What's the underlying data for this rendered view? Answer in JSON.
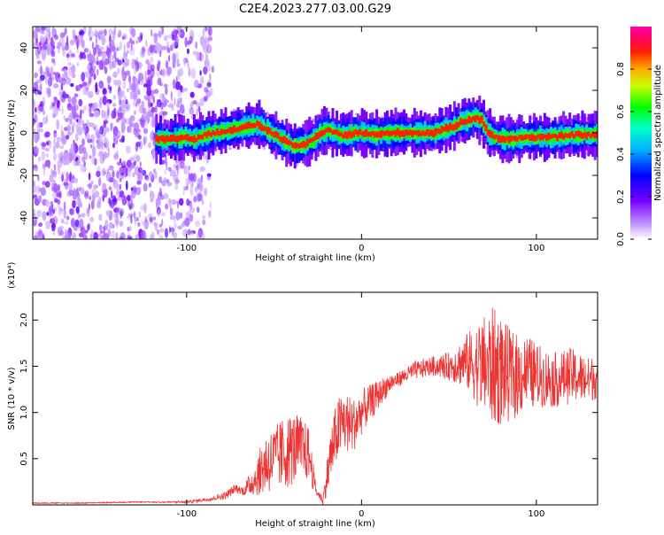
{
  "title": "C2E4.2023.277.03.00.G29",
  "chart_data": [
    {
      "type": "heatmap",
      "xlabel": "Height of straight line (km)",
      "ylabel": "Frequency (Hz)",
      "xlim": [
        -188,
        135
      ],
      "ylim": [
        -50,
        50
      ],
      "xticks": [
        -100,
        0,
        100
      ],
      "yticks": [
        -40,
        -20,
        0,
        20,
        40
      ],
      "colorbar": {
        "label": "Normalized spectral amplitude",
        "range": [
          0,
          1
        ],
        "ticks": [
          "0.0",
          "0.2",
          "0.4",
          "0.6",
          "0.8"
        ]
      },
      "ridge": {
        "x": [
          -118,
          -110,
          -102,
          -96,
          -90,
          -84,
          -78,
          -72,
          -66,
          -60,
          -56,
          -52,
          -48,
          -44,
          -40,
          -36,
          -32,
          -28,
          -24,
          -20,
          -16,
          -12,
          -8,
          -4,
          0,
          8,
          16,
          24,
          32,
          40,
          44,
          48,
          52,
          56,
          60,
          64,
          68,
          72,
          76,
          80,
          86,
          92,
          100,
          110,
          120,
          130,
          135
        ],
        "freq": [
          -3,
          -3,
          -2,
          -3,
          -1,
          0,
          1,
          2,
          3,
          4,
          2,
          0,
          -2,
          -4,
          -6,
          -6,
          -5,
          -3,
          0,
          1,
          0,
          -1,
          -1,
          0,
          0,
          -1,
          0,
          0,
          0,
          0,
          1,
          2,
          3,
          5,
          6,
          7,
          6,
          0,
          -2,
          -3,
          -3,
          -2,
          -2,
          -2,
          -1,
          -1,
          -1
        ]
      },
      "noise_x_range": [
        -188,
        -85
      ]
    },
    {
      "type": "line",
      "xlabel": "Height of straight line (km)",
      "ylabel": "SNR (10 * v/v)",
      "scale_label": "(x10⁴)",
      "xlim": [
        -188,
        135
      ],
      "ylim": [
        0,
        2.3
      ],
      "xticks": [
        -100,
        0,
        100
      ],
      "yticks": [
        "0.5",
        "1.0",
        "1.5",
        "2.0"
      ],
      "ytick_values": [
        0.5,
        1.0,
        1.5,
        2.0
      ],
      "color": "#ee3333",
      "series": [
        {
          "x": [
            -188,
            -160,
            -130,
            -100,
            -92,
            -85,
            -78,
            -72,
            -68,
            -64,
            -60,
            -55,
            -50,
            -45,
            -40,
            -35,
            -30,
            -26,
            -22,
            -18,
            -14,
            -10,
            -5,
            0,
            5,
            10,
            15,
            20,
            25,
            30,
            40,
            50,
            60,
            70,
            75,
            80,
            85,
            90,
            95,
            100,
            110,
            120,
            130,
            135
          ],
          "y": [
            0.02,
            0.02,
            0.03,
            0.03,
            0.05,
            0.07,
            0.1,
            0.18,
            0.15,
            0.22,
            0.3,
            0.45,
            0.5,
            0.55,
            0.6,
            0.62,
            0.55,
            0.15,
            0.05,
            0.5,
            0.8,
            0.9,
            0.85,
            1.0,
            1.1,
            1.2,
            1.3,
            1.35,
            1.4,
            1.45,
            1.5,
            1.5,
            1.55,
            1.5,
            1.5,
            1.45,
            1.4,
            1.4,
            1.45,
            1.4,
            1.35,
            1.4,
            1.35,
            1.4
          ],
          "amplitude": [
            0,
            0,
            0,
            0.01,
            0.02,
            0.02,
            0.04,
            0.05,
            0.05,
            0.12,
            0.2,
            0.35,
            0.35,
            0.4,
            0.4,
            0.35,
            0.3,
            0.05,
            0.05,
            0.3,
            0.35,
            0.35,
            0.3,
            0.25,
            0.2,
            0.15,
            0.12,
            0.08,
            0.08,
            0.1,
            0.1,
            0.15,
            0.3,
            0.55,
            0.65,
            0.6,
            0.5,
            0.45,
            0.4,
            0.35,
            0.3,
            0.3,
            0.25,
            0.25
          ]
        }
      ]
    }
  ]
}
